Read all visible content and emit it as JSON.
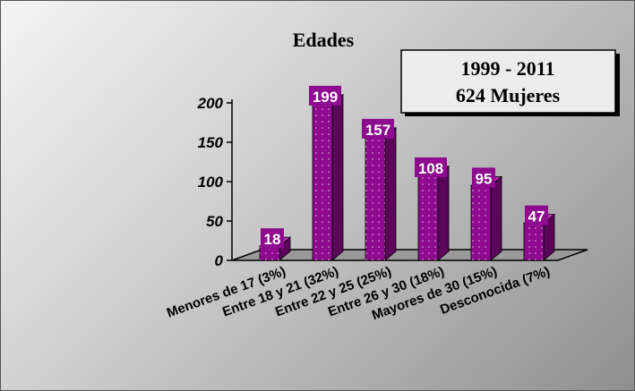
{
  "chart_data": {
    "type": "bar",
    "title": "Edades",
    "annotation": [
      "1999 - 2011",
      "624 Mujeres"
    ],
    "categories": [
      "Menores de 17 (3%)",
      "Entre 18 y 21 (32%)",
      "Entre 22 y 25 (25%)",
      "Entre 26 y 30 (18%)",
      "Mayores de 30 (15%)",
      "Desconocida (7%)"
    ],
    "values": [
      18,
      199,
      157,
      108,
      95,
      47
    ],
    "data_labels": [
      "18",
      "199",
      "157",
      "108",
      "95",
      "47"
    ],
    "yticks": [
      "0",
      "50",
      "100",
      "150",
      "200"
    ],
    "ylim": [
      0,
      200
    ],
    "xlabel": "",
    "ylabel": "",
    "grid": false,
    "three_d": true,
    "colors": {
      "bar_front": "#8e0a8e",
      "bar_side": "#5a045a",
      "bar_top": "#b42db4",
      "floor": "#999999",
      "annotation_box": "#ececec"
    }
  }
}
